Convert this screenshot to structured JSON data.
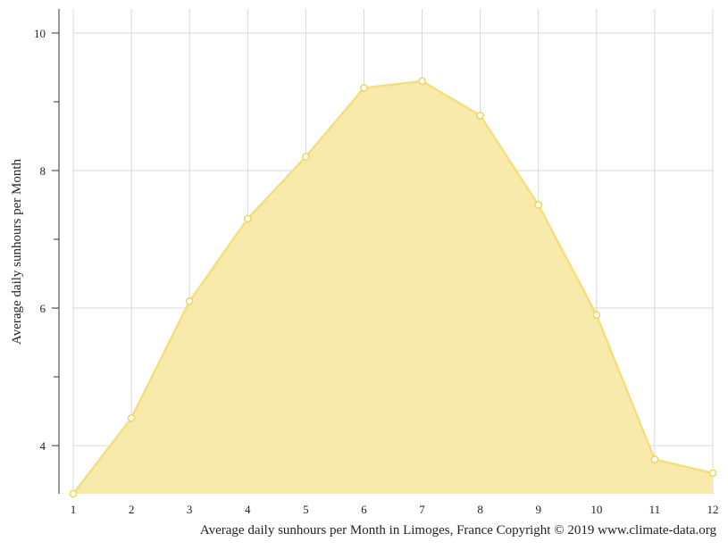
{
  "chart_data": {
    "type": "area",
    "title": "",
    "caption": "Average daily sunhours per Month in Limoges, France Copyright © 2019 www.climate-data.org",
    "xlabel": "",
    "ylabel": "Average daily sunhours per Month",
    "categories": [
      "1",
      "2",
      "3",
      "4",
      "5",
      "6",
      "7",
      "8",
      "9",
      "10",
      "11",
      "12"
    ],
    "series": [
      {
        "values": [
          3.3,
          4.4,
          6.1,
          7.3,
          8.2,
          9.2,
          9.3,
          8.8,
          7.5,
          5.9,
          3.8,
          3.6
        ]
      }
    ],
    "ylim": [
      3.3,
      10.35
    ],
    "yticks": [
      4,
      6,
      8,
      10
    ],
    "ytick_labels": [
      "4",
      "6",
      "8",
      "10"
    ],
    "y_minor_ticks": [
      5,
      7,
      9
    ],
    "grid": true,
    "legend": "none",
    "colors": {
      "fill": "#f8e9a5",
      "line": "#f5df7c",
      "marker": "#f0d55a",
      "grid": "#d8d8d8",
      "axis": "#333333"
    }
  }
}
